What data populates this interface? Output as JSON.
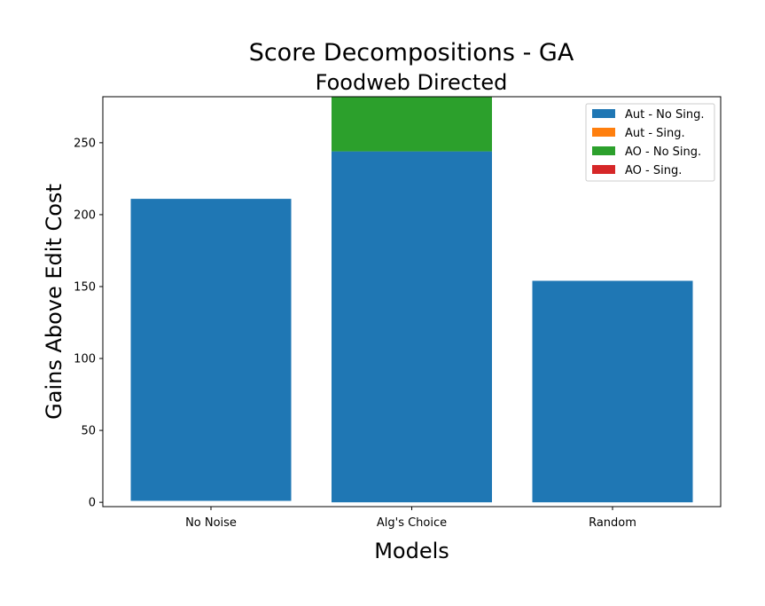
{
  "chart_data": {
    "type": "bar",
    "stacked": true,
    "title": "Score Decompositions - GA",
    "subtitle": "Foodweb Directed",
    "xlabel": "Models",
    "ylabel": "Gains Above Edit Cost",
    "categories": [
      "No Noise",
      "Alg's Choice",
      "Random"
    ],
    "ylim": [
      -3,
      282
    ],
    "yticks": [
      0,
      50,
      100,
      150,
      200,
      250
    ],
    "grid": false,
    "legend_position": "top-right",
    "series": [
      {
        "name": "Aut - No Sing.",
        "color": "#1f77b4",
        "values": [
          210,
          244,
          154
        ],
        "base": [
          1,
          0,
          0
        ]
      },
      {
        "name": "Aut - Sing.",
        "color": "#ff7f0e",
        "values": [
          0,
          0,
          0
        ]
      },
      {
        "name": "AO - No Sing.",
        "color": "#2ca02c",
        "values": [
          0,
          38,
          0
        ]
      },
      {
        "name": "AO - Sing.",
        "color": "#d62728",
        "values": [
          0,
          0,
          0
        ]
      }
    ]
  }
}
